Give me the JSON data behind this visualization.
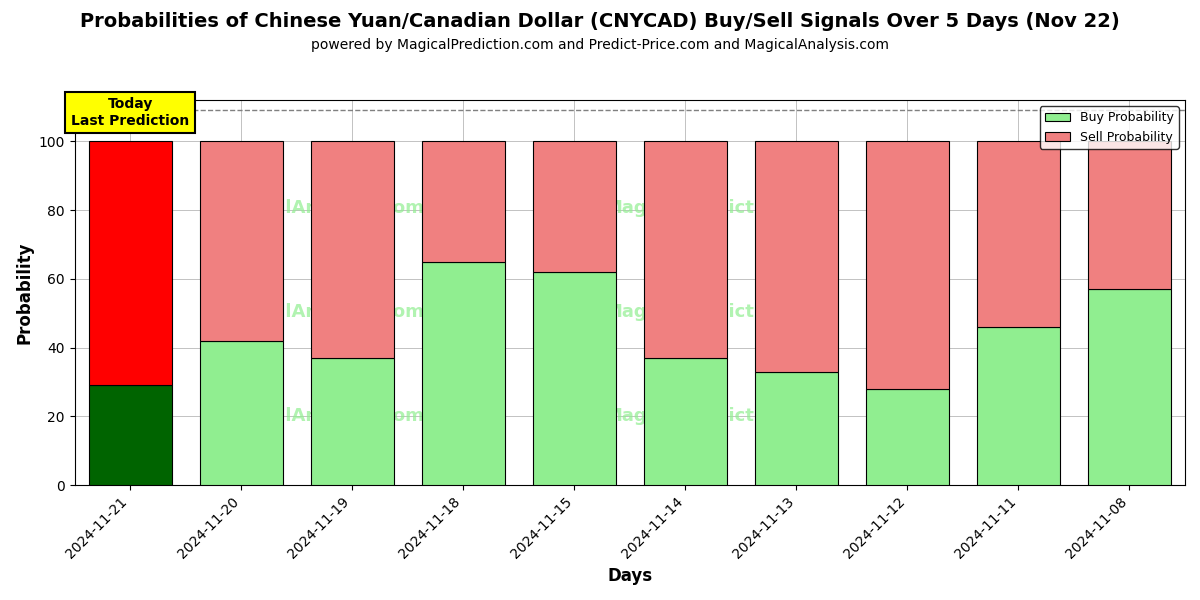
{
  "title": "Probabilities of Chinese Yuan/Canadian Dollar (CNYCAD) Buy/Sell Signals Over 5 Days (Nov 22)",
  "subtitle": "powered by MagicalPrediction.com and Predict-Price.com and MagicalAnalysis.com",
  "xlabel": "Days",
  "ylabel": "Probability",
  "categories": [
    "2024-11-21",
    "2024-11-20",
    "2024-11-19",
    "2024-11-18",
    "2024-11-15",
    "2024-11-14",
    "2024-11-13",
    "2024-11-12",
    "2024-11-11",
    "2024-11-08"
  ],
  "buy_values": [
    29,
    42,
    37,
    65,
    62,
    37,
    33,
    28,
    46,
    57
  ],
  "sell_values": [
    71,
    58,
    63,
    35,
    38,
    63,
    67,
    72,
    54,
    43
  ],
  "today_bar_buy_color": "#006400",
  "today_bar_sell_color": "#FF0000",
  "other_bar_buy_color": "#90EE90",
  "other_bar_sell_color": "#F08080",
  "bar_edge_color": "#000000",
  "ylim": [
    0,
    112
  ],
  "yticks": [
    0,
    20,
    40,
    60,
    80,
    100
  ],
  "dashed_line_y": 109,
  "legend_buy_label": "Buy Probability",
  "legend_sell_label": "Sell Probability",
  "today_label_text": "Today\nLast Prediction",
  "background_color": "#ffffff",
  "grid_color": "#aaaaaa",
  "title_fontsize": 14,
  "subtitle_fontsize": 10,
  "axis_label_fontsize": 12,
  "tick_fontsize": 10
}
